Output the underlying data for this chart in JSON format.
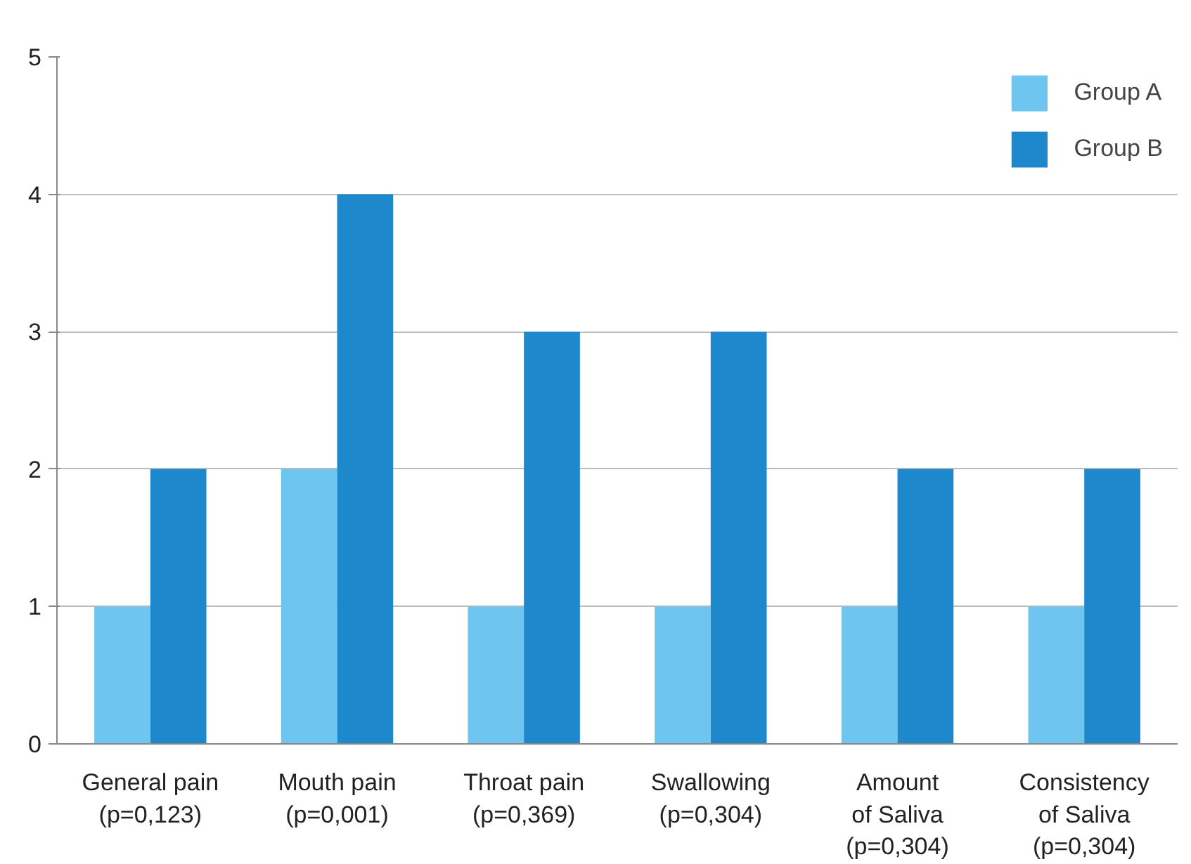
{
  "chart_data": {
    "type": "bar",
    "categories": [
      "General pain\n(p=0,123)",
      "Mouth pain\n(p=0,001)",
      "Throat pain\n(p=0,369)",
      "Swallowing\n(p=0,304)",
      "Amount\nof Saliva\n(p=0,304)",
      "Consistency\nof Saliva\n(p=0,304)"
    ],
    "series": [
      {
        "name": "Group A",
        "color": "#6ec6f0",
        "values": [
          1,
          2,
          1,
          1,
          1,
          1
        ]
      },
      {
        "name": "Group B",
        "color": "#1e88cc",
        "values": [
          2,
          4,
          3,
          3,
          2,
          2
        ]
      }
    ],
    "ylim": [
      0,
      5
    ],
    "yticks": [
      0,
      1,
      2,
      3,
      4,
      5
    ],
    "grid": "y",
    "legend": "top right"
  }
}
